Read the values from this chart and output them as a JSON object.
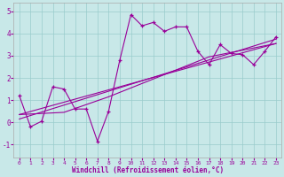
{
  "xlabel": "Windchill (Refroidissement éolien,°C)",
  "xlim": [
    -0.5,
    23.5
  ],
  "ylim": [
    -1.6,
    5.4
  ],
  "yticks": [
    -1,
    0,
    1,
    2,
    3,
    4,
    5
  ],
  "xticks": [
    0,
    1,
    2,
    3,
    4,
    5,
    6,
    7,
    8,
    9,
    10,
    11,
    12,
    13,
    14,
    15,
    16,
    17,
    18,
    19,
    20,
    21,
    22,
    23
  ],
  "background_color": "#c8e8e8",
  "line_color": "#990099",
  "grid_color": "#99cccc",
  "series1_x": [
    0,
    1,
    2,
    3,
    4,
    5,
    6,
    7,
    8,
    9,
    10,
    11,
    12,
    13,
    14,
    15,
    16,
    17,
    18,
    19,
    20,
    21,
    22,
    23
  ],
  "series1_y": [
    1.2,
    -0.2,
    0.05,
    1.6,
    1.5,
    0.6,
    0.6,
    -0.85,
    0.5,
    2.8,
    4.85,
    4.35,
    4.5,
    4.1,
    4.3,
    4.3,
    3.2,
    2.6,
    3.5,
    3.1,
    3.05,
    2.6,
    3.2,
    3.85
  ],
  "series2_x": [
    0,
    23
  ],
  "series2_y": [
    0.15,
    3.75
  ],
  "series3_x": [
    0,
    23
  ],
  "series3_y": [
    0.35,
    3.55
  ],
  "series4_x": [
    0,
    4,
    8,
    10,
    17,
    23
  ],
  "series4_y": [
    0.35,
    0.45,
    1.15,
    1.55,
    2.95,
    3.55
  ]
}
